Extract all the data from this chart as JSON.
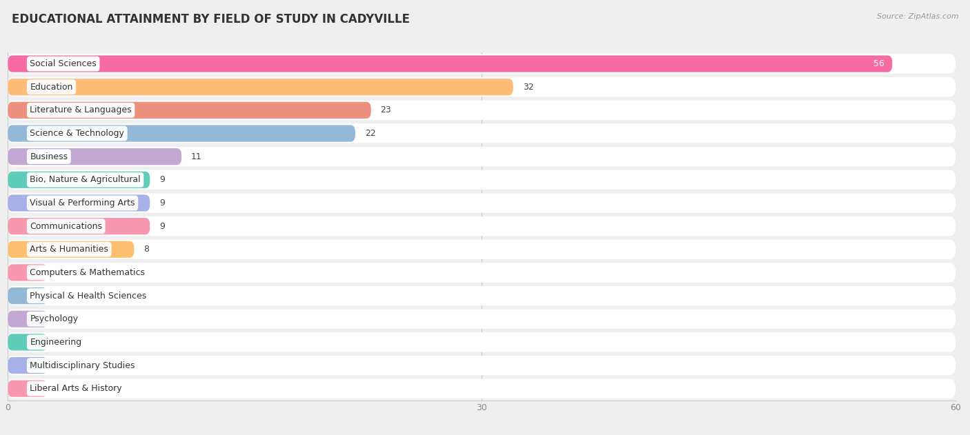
{
  "title": "EDUCATIONAL ATTAINMENT BY FIELD OF STUDY IN CADYVILLE",
  "source": "Source: ZipAtlas.com",
  "categories": [
    "Social Sciences",
    "Education",
    "Literature & Languages",
    "Science & Technology",
    "Business",
    "Bio, Nature & Agricultural",
    "Visual & Performing Arts",
    "Communications",
    "Arts & Humanities",
    "Computers & Mathematics",
    "Physical & Health Sciences",
    "Psychology",
    "Engineering",
    "Multidisciplinary Studies",
    "Liberal Arts & History"
  ],
  "values": [
    56,
    32,
    23,
    22,
    11,
    9,
    9,
    9,
    8,
    0,
    0,
    0,
    0,
    0,
    0
  ],
  "bar_colors": [
    "#F76BA3",
    "#FFBC78",
    "#EE9080",
    "#94B8D8",
    "#C4A8D4",
    "#60CDB8",
    "#A8B0E8",
    "#F898B0",
    "#FFBF70",
    "#F898B0",
    "#94B8D8",
    "#C4A8D4",
    "#60CDB8",
    "#A8B0E8",
    "#F898B0"
  ],
  "xlim": [
    0,
    60
  ],
  "xticks": [
    0,
    30,
    60
  ],
  "background_color": "#EFEFEF",
  "title_fontsize": 12,
  "label_fontsize": 9
}
